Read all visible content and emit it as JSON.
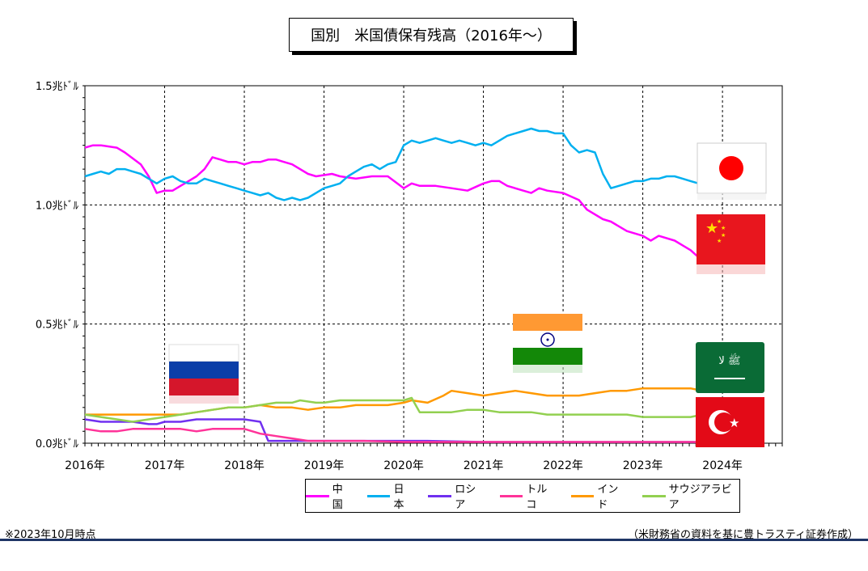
{
  "title": "国別　米国債保有残高（2016年～）",
  "footnote": "※2023年10月時点",
  "source": "（米財務省の資料を基に豊トラスティ証券作成）",
  "chart_data": {
    "type": "line",
    "title": "国別　米国債保有残高（2016年～）",
    "y_unit": "兆ドル",
    "ylim": [
      0,
      1.5
    ],
    "y_ticks": [
      {
        "value": 0.0,
        "label": "0.0兆ﾄﾞﾙ"
      },
      {
        "value": 0.5,
        "label": "0.5兆ﾄﾞﾙ"
      },
      {
        "value": 1.0,
        "label": "1.0兆ﾄﾞﾙ"
      },
      {
        "value": 1.5,
        "label": "1.5兆ﾄﾞﾙ"
      }
    ],
    "xlim": [
      2016.0,
      2024.75
    ],
    "x_ticks": [
      {
        "value": 2016,
        "label": "2016年"
      },
      {
        "value": 2017,
        "label": "2017年"
      },
      {
        "value": 2018,
        "label": "2018年"
      },
      {
        "value": 2019,
        "label": "2019年"
      },
      {
        "value": 2020,
        "label": "2020年"
      },
      {
        "value": 2021,
        "label": "2021年"
      },
      {
        "value": 2022,
        "label": "2022年"
      },
      {
        "value": 2023,
        "label": "2023年"
      },
      {
        "value": 2024,
        "label": "2024年"
      }
    ],
    "grid": true,
    "legend_position": "bottom",
    "series": [
      {
        "name": "中国",
        "color": "#ff00ff",
        "x": [
          2016.0,
          2016.1,
          2016.2,
          2016.4,
          2016.5,
          2016.7,
          2016.8,
          2016.9,
          2017.0,
          2017.1,
          2017.2,
          2017.3,
          2017.4,
          2017.5,
          2017.6,
          2017.7,
          2017.8,
          2017.9,
          2018.0,
          2018.1,
          2018.2,
          2018.3,
          2018.4,
          2018.5,
          2018.6,
          2018.8,
          2018.9,
          2019.1,
          2019.2,
          2019.4,
          2019.6,
          2019.8,
          2020.0,
          2020.1,
          2020.2,
          2020.4,
          2020.6,
          2020.8,
          2021.0,
          2021.1,
          2021.2,
          2021.3,
          2021.5,
          2021.6,
          2021.7,
          2021.8,
          2022.0,
          2022.2,
          2022.3,
          2022.5,
          2022.6,
          2022.8,
          2023.0,
          2023.1,
          2023.2,
          2023.4,
          2023.5,
          2023.6,
          2023.7
        ],
        "y": [
          1.24,
          1.25,
          1.25,
          1.24,
          1.22,
          1.17,
          1.12,
          1.05,
          1.06,
          1.06,
          1.08,
          1.1,
          1.12,
          1.15,
          1.2,
          1.19,
          1.18,
          1.18,
          1.17,
          1.18,
          1.18,
          1.19,
          1.19,
          1.18,
          1.17,
          1.13,
          1.12,
          1.13,
          1.12,
          1.11,
          1.12,
          1.12,
          1.07,
          1.09,
          1.08,
          1.08,
          1.07,
          1.06,
          1.09,
          1.1,
          1.1,
          1.08,
          1.06,
          1.05,
          1.07,
          1.06,
          1.05,
          1.02,
          0.98,
          0.94,
          0.93,
          0.89,
          0.87,
          0.85,
          0.87,
          0.85,
          0.83,
          0.81,
          0.78
        ]
      },
      {
        "name": "日本",
        "color": "#00b0f0",
        "x": [
          2016.0,
          2016.1,
          2016.2,
          2016.3,
          2016.4,
          2016.5,
          2016.6,
          2016.7,
          2016.8,
          2016.9,
          2017.0,
          2017.1,
          2017.2,
          2017.3,
          2017.4,
          2017.5,
          2017.6,
          2017.7,
          2017.8,
          2017.9,
          2018.0,
          2018.1,
          2018.2,
          2018.3,
          2018.4,
          2018.5,
          2018.6,
          2018.7,
          2018.8,
          2018.9,
          2019.0,
          2019.1,
          2019.2,
          2019.3,
          2019.4,
          2019.5,
          2019.6,
          2019.7,
          2019.8,
          2019.9,
          2020.0,
          2020.1,
          2020.2,
          2020.3,
          2020.4,
          2020.5,
          2020.6,
          2020.7,
          2020.8,
          2020.9,
          2021.0,
          2021.1,
          2021.2,
          2021.3,
          2021.4,
          2021.5,
          2021.6,
          2021.7,
          2021.8,
          2021.9,
          2022.0,
          2022.1,
          2022.2,
          2022.3,
          2022.4,
          2022.5,
          2022.6,
          2022.7,
          2022.8,
          2022.9,
          2023.0,
          2023.1,
          2023.2,
          2023.3,
          2023.4,
          2023.5,
          2023.6,
          2023.7,
          2023.8
        ],
        "y": [
          1.12,
          1.13,
          1.14,
          1.13,
          1.15,
          1.15,
          1.14,
          1.13,
          1.11,
          1.09,
          1.11,
          1.12,
          1.1,
          1.09,
          1.09,
          1.11,
          1.1,
          1.09,
          1.08,
          1.07,
          1.06,
          1.05,
          1.04,
          1.05,
          1.03,
          1.02,
          1.03,
          1.02,
          1.03,
          1.05,
          1.07,
          1.08,
          1.09,
          1.12,
          1.14,
          1.16,
          1.17,
          1.15,
          1.17,
          1.18,
          1.25,
          1.27,
          1.26,
          1.27,
          1.28,
          1.27,
          1.26,
          1.27,
          1.26,
          1.25,
          1.26,
          1.25,
          1.27,
          1.29,
          1.3,
          1.31,
          1.32,
          1.31,
          1.31,
          1.3,
          1.3,
          1.25,
          1.22,
          1.23,
          1.22,
          1.13,
          1.07,
          1.08,
          1.09,
          1.1,
          1.1,
          1.11,
          1.11,
          1.12,
          1.12,
          1.11,
          1.1,
          1.09,
          1.1
        ]
      },
      {
        "name": "ロシア",
        "color": "#7030f0",
        "x": [
          2016.0,
          2016.2,
          2016.4,
          2016.6,
          2016.8,
          2016.9,
          2017.0,
          2017.2,
          2017.4,
          2017.6,
          2017.8,
          2018.0,
          2018.2,
          2018.3,
          2018.4,
          2018.6,
          2018.8,
          2019.0,
          2019.5,
          2020.0,
          2020.1,
          2020.3,
          2021.0,
          2022.0,
          2023.0,
          2023.75
        ],
        "y": [
          0.1,
          0.09,
          0.09,
          0.09,
          0.08,
          0.08,
          0.09,
          0.09,
          0.1,
          0.1,
          0.1,
          0.1,
          0.09,
          0.01,
          0.01,
          0.01,
          0.01,
          0.01,
          0.01,
          0.01,
          0.01,
          0.01,
          0.005,
          0.005,
          0.005,
          0.005
        ]
      },
      {
        "name": "トルコ",
        "color": "#ff3399",
        "x": [
          2016.0,
          2016.2,
          2016.4,
          2016.6,
          2016.8,
          2017.0,
          2017.2,
          2017.4,
          2017.6,
          2017.8,
          2018.0,
          2018.2,
          2018.4,
          2018.6,
          2018.8,
          2019.0,
          2019.5,
          2020.0,
          2021.0,
          2022.0,
          2023.0,
          2023.75
        ],
        "y": [
          0.06,
          0.05,
          0.05,
          0.06,
          0.06,
          0.06,
          0.06,
          0.05,
          0.06,
          0.06,
          0.06,
          0.04,
          0.03,
          0.02,
          0.01,
          0.01,
          0.01,
          0.005,
          0.005,
          0.005,
          0.005,
          0.005
        ]
      },
      {
        "name": "インド",
        "color": "#ff9900",
        "x": [
          2016.0,
          2016.2,
          2016.4,
          2016.6,
          2016.8,
          2017.0,
          2017.2,
          2017.4,
          2017.6,
          2017.8,
          2018.0,
          2018.2,
          2018.4,
          2018.6,
          2018.8,
          2019.0,
          2019.2,
          2019.4,
          2019.6,
          2019.8,
          2020.0,
          2020.1,
          2020.3,
          2020.5,
          2020.6,
          2020.8,
          2021.0,
          2021.2,
          2021.4,
          2021.6,
          2021.8,
          2022.0,
          2022.2,
          2022.4,
          2022.6,
          2022.8,
          2023.0,
          2023.2,
          2023.4,
          2023.6,
          2023.75
        ],
        "y": [
          0.12,
          0.12,
          0.12,
          0.12,
          0.12,
          0.12,
          0.12,
          0.13,
          0.14,
          0.15,
          0.15,
          0.16,
          0.15,
          0.15,
          0.14,
          0.15,
          0.15,
          0.16,
          0.16,
          0.16,
          0.17,
          0.18,
          0.17,
          0.2,
          0.22,
          0.21,
          0.2,
          0.21,
          0.22,
          0.21,
          0.2,
          0.2,
          0.2,
          0.21,
          0.22,
          0.22,
          0.23,
          0.23,
          0.23,
          0.23,
          0.22
        ]
      },
      {
        "name": "サウジアラビア",
        "color": "#92d050",
        "x": [
          2016.0,
          2016.2,
          2016.4,
          2016.6,
          2016.8,
          2017.0,
          2017.2,
          2017.4,
          2017.6,
          2017.8,
          2018.0,
          2018.2,
          2018.4,
          2018.6,
          2018.7,
          2018.9,
          2019.0,
          2019.2,
          2019.4,
          2019.6,
          2019.8,
          2020.0,
          2020.1,
          2020.2,
          2020.4,
          2020.6,
          2020.8,
          2021.0,
          2021.2,
          2021.4,
          2021.6,
          2021.8,
          2022.0,
          2022.2,
          2022.4,
          2022.6,
          2022.8,
          2023.0,
          2023.2,
          2023.4,
          2023.6,
          2023.75
        ],
        "y": [
          0.12,
          0.11,
          0.1,
          0.09,
          0.1,
          0.11,
          0.12,
          0.13,
          0.14,
          0.15,
          0.15,
          0.16,
          0.17,
          0.17,
          0.18,
          0.17,
          0.17,
          0.18,
          0.18,
          0.18,
          0.18,
          0.18,
          0.19,
          0.13,
          0.13,
          0.13,
          0.14,
          0.14,
          0.13,
          0.13,
          0.13,
          0.12,
          0.12,
          0.12,
          0.12,
          0.12,
          0.12,
          0.11,
          0.11,
          0.11,
          0.11,
          0.12
        ]
      }
    ]
  }
}
